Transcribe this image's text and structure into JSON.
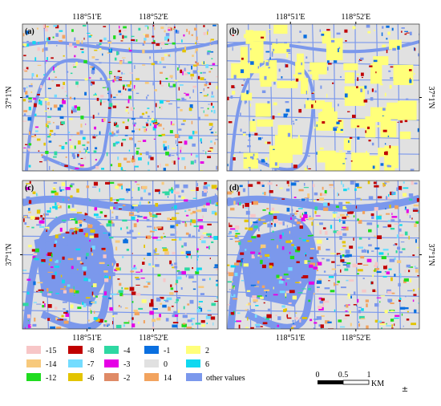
{
  "panels": [
    {
      "label": "(a)"
    },
    {
      "label": "(b)"
    },
    {
      "label": "(c)"
    },
    {
      "label": "(d)"
    }
  ],
  "coordinates": {
    "longitude": [
      "118°51'E",
      "118°52'E"
    ],
    "latitude": "37°1'N"
  },
  "legend": [
    {
      "label": "-15",
      "color": "#f7c6c7"
    },
    {
      "label": "-14",
      "color": "#f7c97c"
    },
    {
      "label": "-12",
      "color": "#1fdc1f"
    },
    {
      "label": "-8",
      "color": "#c00000"
    },
    {
      "label": "-7",
      "color": "#73dcff"
    },
    {
      "label": "-6",
      "color": "#e3c400"
    },
    {
      "label": "-4",
      "color": "#2ed8a2"
    },
    {
      "label": "-3",
      "color": "#e600e6"
    },
    {
      "label": "-2",
      "color": "#df8a66"
    },
    {
      "label": "-1",
      "color": "#0a6fe0"
    },
    {
      "label": "0",
      "color": "#e1e1e1"
    },
    {
      "label": "14",
      "color": "#f2a35e"
    },
    {
      "label": "2",
      "color": "#ffff7a"
    },
    {
      "label": "6",
      "color": "#10d8f0"
    },
    {
      "label": "other values",
      "color": "#7b98ec"
    }
  ],
  "scale_bar": {
    "labels": [
      "0",
      "0.5",
      "1"
    ],
    "unit": "KM"
  },
  "north_symbol": "±"
}
